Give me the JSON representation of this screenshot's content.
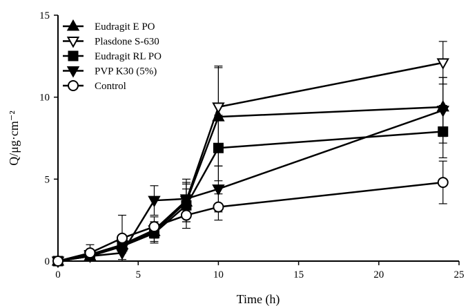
{
  "chart_data": {
    "type": "line",
    "title": "",
    "xlabel": "Time (h)",
    "ylabel": "Q/μg·cm⁻²",
    "xlim": [
      0,
      25
    ],
    "ylim": [
      0,
      15
    ],
    "xticks": [
      "0",
      "5",
      "10",
      "15",
      "20",
      "25"
    ],
    "yticks": [
      "0",
      "5",
      "10",
      "15"
    ],
    "grid": false,
    "legend_position": "top-left",
    "x": [
      0,
      2,
      4,
      6,
      8,
      10,
      24
    ],
    "series": [
      {
        "name": "Eudragit E PO",
        "marker": "triangle-up-filled",
        "values": [
          0,
          0.3,
          1.0,
          1.8,
          3.6,
          8.8,
          9.4
        ],
        "errors": [
          0,
          0.3,
          0.5,
          0.6,
          1.2,
          3.0,
          1.8
        ]
      },
      {
        "name": "Plasdone S-630",
        "marker": "triangle-down-open",
        "values": [
          0,
          0.4,
          1.0,
          1.9,
          3.7,
          9.4,
          12.1
        ],
        "errors": [
          0,
          0.3,
          0.4,
          0.5,
          1.0,
          2.5,
          1.3
        ]
      },
      {
        "name": "Eudragit RL PO",
        "marker": "square-filled",
        "values": [
          0,
          0.3,
          0.9,
          1.7,
          3.4,
          6.9,
          7.9
        ],
        "errors": [
          0,
          0.2,
          0.4,
          0.6,
          1.0,
          2.0,
          1.6
        ]
      },
      {
        "name": "PVP K30 (5%)",
        "marker": "triangle-down-filled",
        "values": [
          0,
          0.3,
          0.5,
          3.7,
          3.8,
          4.4,
          9.2
        ],
        "errors": [
          0,
          0.2,
          0.4,
          0.9,
          1.2,
          1.4,
          2.0
        ]
      },
      {
        "name": "Control",
        "marker": "circle-open",
        "values": [
          0,
          0.5,
          1.4,
          2.1,
          2.8,
          3.3,
          4.8
        ],
        "errors": [
          0,
          0.5,
          1.4,
          0.6,
          0.8,
          0.8,
          1.3
        ]
      }
    ]
  }
}
